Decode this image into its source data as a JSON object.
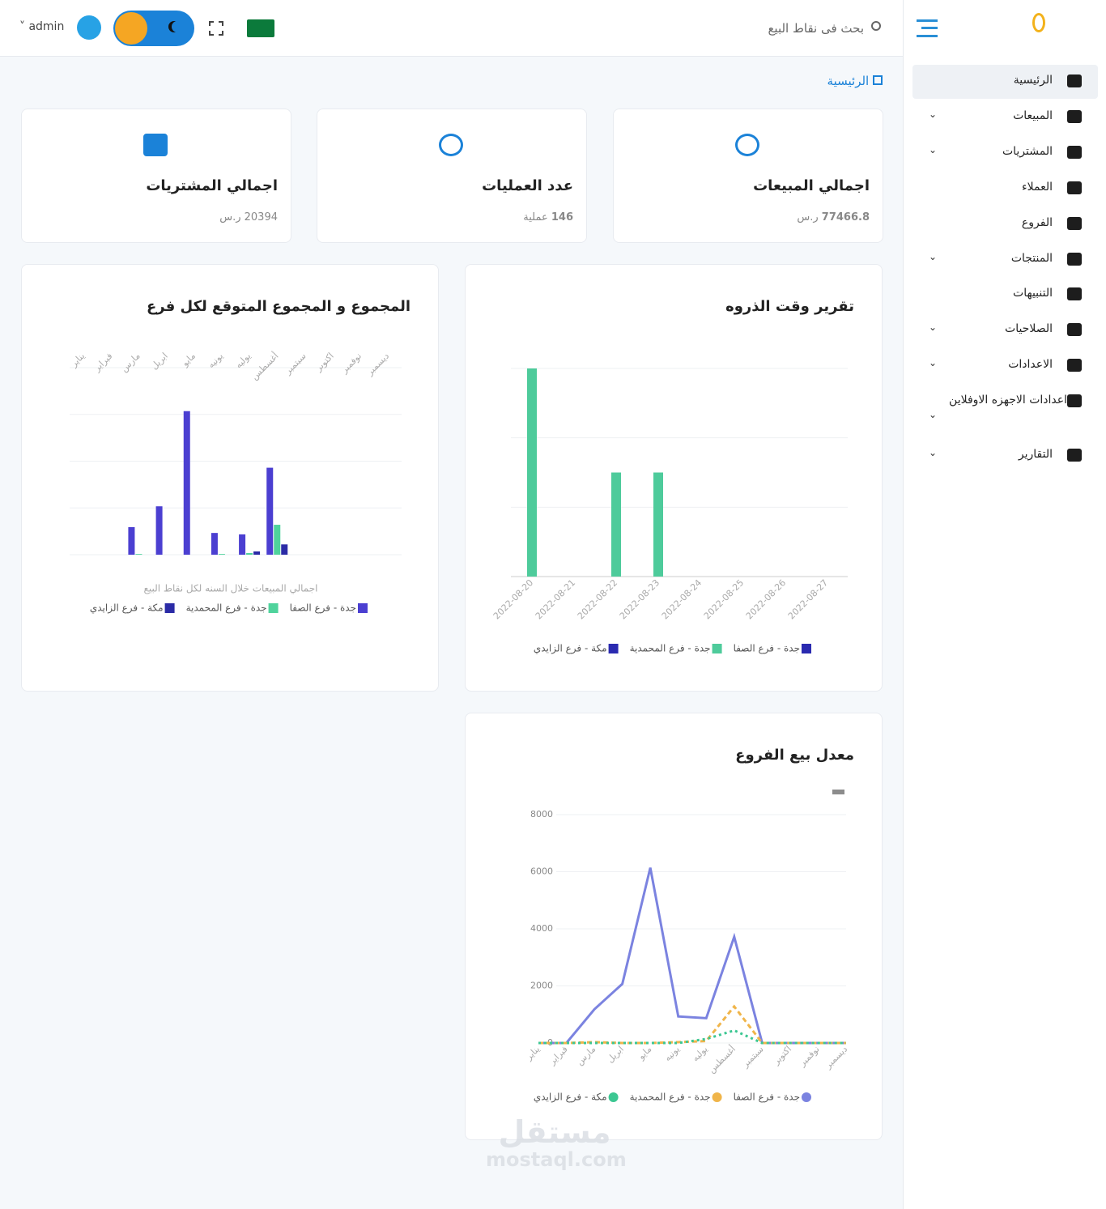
{
  "header": {
    "search_placeholder": "بحث فى نقاط البيع",
    "user": "admin"
  },
  "sidebar": {
    "items": [
      {
        "label": "الرئيسية",
        "expandable": false,
        "active": true
      },
      {
        "label": "المبيعات",
        "expandable": true,
        "active": false
      },
      {
        "label": "المشتريات",
        "expandable": true,
        "active": false
      },
      {
        "label": "العملاء",
        "expandable": false,
        "active": false
      },
      {
        "label": "الفروع",
        "expandable": false,
        "active": false
      },
      {
        "label": "المنتجات",
        "expandable": true,
        "active": false
      },
      {
        "label": "التنبيهات",
        "expandable": false,
        "active": false
      },
      {
        "label": "الصلاحيات",
        "expandable": true,
        "active": false
      },
      {
        "label": "الاعدادات",
        "expandable": true,
        "active": false
      },
      {
        "label": "اعدادات الاجهزه الاوفلاين",
        "expandable": true,
        "active": false
      },
      {
        "label": "التقارير",
        "expandable": true,
        "active": false
      }
    ]
  },
  "breadcrumb": "الرئيسية",
  "cards": [
    {
      "title": "اجمالي المبيعات",
      "value": 77466.8,
      "unit": "ر.س"
    },
    {
      "title": "عدد العمليات",
      "value": 146,
      "unit": "عملية"
    },
    {
      "title": "اجمالي المشتريات",
      "value": 20394,
      "unit": "ر.س"
    }
  ],
  "watermark": {
    "arabic": "مستقل",
    "latin": "mostaql.com"
  },
  "chart_data": [
    {
      "type": "bar",
      "title": "المجموع و المجموع المتوقع لكل فرع",
      "x_label": "اجمالي المبيعات خلال السنه لكل نقاط البيع",
      "categories": [
        "يناير",
        "فبراير",
        "مارس",
        "ابريل",
        "مايو",
        "يونيه",
        "يوليه",
        "أغسطس",
        "سبتمبر",
        "اكتوبر",
        "نوفمبر",
        "ديسمبر"
      ],
      "series": [
        {
          "name": "جدة - فرع الصفا",
          "color": "#4b3fd1",
          "values": [
            0,
            0,
            1180,
            2070,
            6140,
            930,
            870,
            3720,
            0,
            0,
            0,
            0
          ]
        },
        {
          "name": "جدة - فرع المحمدية",
          "color": "#4fd39c",
          "values": [
            0,
            0,
            30,
            0,
            0,
            30,
            70,
            1280,
            0,
            0,
            0,
            0
          ]
        },
        {
          "name": "مكة - فرع الزايدي",
          "color": "#2b2ba6",
          "values": [
            0,
            0,
            0,
            0,
            0,
            0,
            140,
            440,
            0,
            0,
            0,
            0
          ]
        }
      ],
      "ylim": [
        0,
        8000
      ],
      "yticks": [
        0,
        2000,
        4000,
        6000,
        8000
      ],
      "show_ytick_labels": false,
      "grid": true
    },
    {
      "type": "bar",
      "title": "تقرير وقت الذروه",
      "categories": [
        "2022-08-20",
        "2022-08-21",
        "2022-08-22",
        "2022-08-23",
        "2022-08-24",
        "2022-08-25",
        "2022-08-26",
        "2022-08-27"
      ],
      "series": [
        {
          "name": "جدة - فرع الصفا",
          "color": "#2a2ab0",
          "values": [
            0,
            0,
            0,
            0,
            0,
            0,
            0,
            0
          ]
        },
        {
          "name": "جدة - فرع المحمدية",
          "color": "#4ecb9b",
          "values": [
            3,
            0,
            1.5,
            1.5,
            0,
            0,
            0,
            0
          ]
        },
        {
          "name": "مكة - فرع الزايدي",
          "color": "#2a2ab0",
          "values": [
            0,
            0,
            0,
            0,
            0,
            0,
            0,
            0
          ]
        }
      ],
      "ylim": [
        0,
        3
      ],
      "yticks": [
        0,
        1,
        2,
        3
      ],
      "show_ytick_labels": false,
      "grid": true
    },
    {
      "type": "line",
      "title": "معدل بيع الفروع",
      "categories": [
        "يناير",
        "فبراير",
        "مارس",
        "ابريل",
        "مايو",
        "يونيه",
        "يوليه",
        "أغسطس",
        "سبتمبر",
        "اكتوبر",
        "نوفمبر",
        "ديسمبر"
      ],
      "series": [
        {
          "name": "جدة - فرع الصفا",
          "color": "#7b83e0",
          "style": "solid",
          "values": [
            0,
            0,
            1180,
            2070,
            6140,
            930,
            870,
            3720,
            0,
            0,
            0,
            0
          ]
        },
        {
          "name": "جدة - فرع المحمدية",
          "color": "#f0b54a",
          "style": "dashed",
          "values": [
            0,
            0,
            30,
            0,
            0,
            30,
            70,
            1280,
            0,
            0,
            0,
            0
          ]
        },
        {
          "name": "مكة - فرع الزايدي",
          "color": "#3cc792",
          "style": "dotted",
          "values": [
            0,
            0,
            0,
            0,
            0,
            0,
            140,
            440,
            0,
            0,
            0,
            0
          ]
        }
      ],
      "ylim": [
        0,
        8000
      ],
      "yticks": [
        0,
        2000,
        4000,
        6000,
        8000
      ],
      "show_ytick_labels": true,
      "grid": true
    }
  ]
}
